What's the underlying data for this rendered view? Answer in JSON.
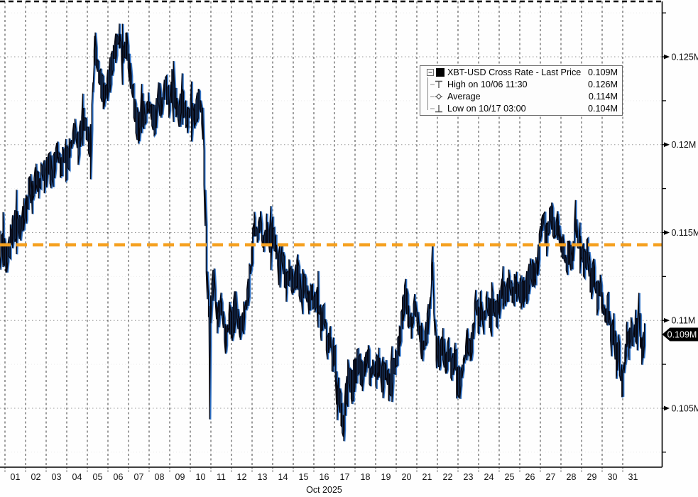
{
  "legend": {
    "title": {
      "label": "XBT-USD Cross Rate - Last Price",
      "value": "0.109M"
    },
    "rows": [
      {
        "id": "high",
        "label": "High on 10/06 11:30",
        "value": "0.126M"
      },
      {
        "id": "average",
        "label": "Average",
        "value": "0.114M"
      },
      {
        "id": "low",
        "label": "Low on 10/17 03:00",
        "value": "0.104M"
      }
    ]
  },
  "last_price_badge": {
    "text": "0.109M"
  },
  "colors": {
    "price_line_black": "#06060f",
    "price_line_blue": "#2f6fc3",
    "price_line_lightblue": "#8ab6e4",
    "average_line": "#f5a01f",
    "grid_vertical": "#3f3f3f",
    "grid_major_horizontal": "#999999",
    "grid_minor_horizontal": "#ececec",
    "axis": "#000000",
    "tick": "#444444",
    "text": "#111111",
    "badge_bg": "#000000",
    "badge_text": "#ffffff",
    "legend_icon": "#555555"
  },
  "chart_data": {
    "type": "line",
    "title": "XBT-USD Cross Rate - Last Price",
    "x_label": "Oct 2025",
    "x_unit": "days since 2025-10-01 00:00",
    "y_unit": "M USD",
    "y_range": [
      0.1016,
      0.1282
    ],
    "grid": true,
    "legend_position": "top-right",
    "high": {
      "time": "10/06 11:30",
      "value": 0.126
    },
    "low": {
      "time": "10/17 03:00",
      "value": 0.104
    },
    "average": 0.114,
    "average_line_value": 0.1143,
    "last_price": 0.109,
    "x_axis": {
      "month_label": "Oct 2025",
      "tick_labels": [
        "01",
        "02",
        "03",
        "04",
        "05",
        "06",
        "07",
        "08",
        "09",
        "10",
        "11",
        "12",
        "13",
        "14",
        "15",
        "16",
        "17",
        "18",
        "19",
        "20",
        "21",
        "22",
        "23",
        "24",
        "25",
        "26",
        "27",
        "28",
        "29",
        "30",
        "31"
      ]
    },
    "y_axis": {
      "major_ticks": [
        {
          "value": 0.125,
          "label": "0.125M"
        },
        {
          "value": 0.12,
          "label": "0.12M"
        },
        {
          "value": 0.115,
          "label": "0.115M"
        },
        {
          "value": 0.11,
          "label": "0.11M"
        },
        {
          "value": 0.105,
          "label": "0.105M"
        }
      ],
      "minor_tick_values": [
        0.1275,
        0.1225,
        0.1175,
        0.1125,
        0.1075,
        0.1025
      ]
    },
    "series": [
      {
        "name": "XBT-USD Cross Rate - Last Price",
        "points": [
          [
            -0.24,
            0.114
          ],
          [
            -0.1,
            0.1146
          ],
          [
            0.05,
            0.1133
          ],
          [
            0.2,
            0.1142
          ],
          [
            0.35,
            0.115
          ],
          [
            0.55,
            0.1156
          ],
          [
            0.75,
            0.1152
          ],
          [
            0.9,
            0.116
          ],
          [
            1.05,
            0.1164
          ],
          [
            1.2,
            0.1178
          ],
          [
            1.32,
            0.117
          ],
          [
            1.5,
            0.1182
          ],
          [
            1.65,
            0.1176
          ],
          [
            1.8,
            0.1186
          ],
          [
            1.95,
            0.118
          ],
          [
            2.1,
            0.119
          ],
          [
            2.3,
            0.1182
          ],
          [
            2.55,
            0.1198
          ],
          [
            2.7,
            0.1186
          ],
          [
            2.85,
            0.1194
          ],
          [
            3.0,
            0.119
          ],
          [
            3.15,
            0.1196
          ],
          [
            3.4,
            0.121
          ],
          [
            3.55,
            0.1198
          ],
          [
            3.8,
            0.1216
          ],
          [
            4.0,
            0.1206
          ],
          [
            4.15,
            0.1196
          ],
          [
            4.35,
            0.1257
          ],
          [
            4.5,
            0.1244
          ],
          [
            4.65,
            0.1235
          ],
          [
            4.8,
            0.1228
          ],
          [
            4.95,
            0.1232
          ],
          [
            5.1,
            0.124
          ],
          [
            5.3,
            0.1252
          ],
          [
            5.55,
            0.1262
          ],
          [
            5.72,
            0.125
          ],
          [
            5.9,
            0.1258
          ],
          [
            6.05,
            0.1242
          ],
          [
            6.2,
            0.123
          ],
          [
            6.35,
            0.1215
          ],
          [
            6.5,
            0.1208
          ],
          [
            6.65,
            0.1222
          ],
          [
            6.8,
            0.1214
          ],
          [
            6.95,
            0.1224
          ],
          [
            7.1,
            0.1218
          ],
          [
            7.3,
            0.1212
          ],
          [
            7.45,
            0.123
          ],
          [
            7.6,
            0.122
          ],
          [
            7.78,
            0.1235
          ],
          [
            8.0,
            0.1222
          ],
          [
            8.1,
            0.1234
          ],
          [
            8.3,
            0.1224
          ],
          [
            8.45,
            0.1216
          ],
          [
            8.6,
            0.1226
          ],
          [
            8.85,
            0.1214
          ],
          [
            9.0,
            0.122
          ],
          [
            9.2,
            0.1216
          ],
          [
            9.45,
            0.1226
          ],
          [
            9.6,
            0.1212
          ],
          [
            9.72,
            0.1162
          ],
          [
            9.82,
            0.112
          ],
          [
            9.9,
            0.1105
          ],
          [
            9.935,
            0.1047
          ],
          [
            9.97,
            0.1095
          ],
          [
            10.0,
            0.1112
          ],
          [
            10.15,
            0.1124
          ],
          [
            10.3,
            0.11
          ],
          [
            10.5,
            0.111
          ],
          [
            10.72,
            0.1088
          ],
          [
            10.9,
            0.1102
          ],
          [
            11.0,
            0.1096
          ],
          [
            11.2,
            0.1108
          ],
          [
            11.4,
            0.1095
          ],
          [
            11.6,
            0.1102
          ],
          [
            11.8,
            0.1116
          ],
          [
            12.0,
            0.1138
          ],
          [
            12.1,
            0.1155
          ],
          [
            12.25,
            0.1148
          ],
          [
            12.4,
            0.1157
          ],
          [
            12.55,
            0.1142
          ],
          [
            12.7,
            0.1152
          ],
          [
            12.85,
            0.1145
          ],
          [
            13.0,
            0.115
          ],
          [
            13.15,
            0.1142
          ],
          [
            13.3,
            0.1128
          ],
          [
            13.45,
            0.1138
          ],
          [
            13.65,
            0.112
          ],
          [
            13.8,
            0.1128
          ],
          [
            14.0,
            0.112
          ],
          [
            14.2,
            0.1128
          ],
          [
            14.4,
            0.1114
          ],
          [
            14.55,
            0.1122
          ],
          [
            14.75,
            0.111
          ],
          [
            14.9,
            0.1116
          ],
          [
            15.0,
            0.111
          ],
          [
            15.2,
            0.1112
          ],
          [
            15.35,
            0.1098
          ],
          [
            15.5,
            0.1104
          ],
          [
            15.65,
            0.1084
          ],
          [
            15.8,
            0.1092
          ],
          [
            15.88,
            0.1074
          ],
          [
            15.95,
            0.1082
          ],
          [
            16.05,
            0.1076
          ],
          [
            16.125,
            0.1052
          ],
          [
            16.2,
            0.106
          ],
          [
            16.35,
            0.1046
          ],
          [
            16.45,
            0.1038
          ],
          [
            16.55,
            0.1058
          ],
          [
            16.7,
            0.1068
          ],
          [
            16.85,
            0.1062
          ],
          [
            17.0,
            0.107
          ],
          [
            17.15,
            0.1077
          ],
          [
            17.35,
            0.1068
          ],
          [
            17.5,
            0.1075
          ],
          [
            17.62,
            0.1081
          ],
          [
            17.75,
            0.1067
          ],
          [
            17.85,
            0.1074
          ],
          [
            18.0,
            0.107
          ],
          [
            18.15,
            0.1076
          ],
          [
            18.3,
            0.1066
          ],
          [
            18.5,
            0.1072
          ],
          [
            18.65,
            0.1062
          ],
          [
            18.8,
            0.107
          ],
          [
            19.0,
            0.1078
          ],
          [
            19.15,
            0.1088
          ],
          [
            19.3,
            0.1104
          ],
          [
            19.45,
            0.1116
          ],
          [
            19.6,
            0.1102
          ],
          [
            19.75,
            0.1096
          ],
          [
            19.9,
            0.111
          ],
          [
            20.0,
            0.1102
          ],
          [
            20.15,
            0.1092
          ],
          [
            20.3,
            0.1084
          ],
          [
            20.5,
            0.1096
          ],
          [
            20.65,
            0.111
          ],
          [
            20.75,
            0.1136
          ],
          [
            20.82,
            0.1108
          ],
          [
            20.95,
            0.1082
          ],
          [
            21.0,
            0.1086
          ],
          [
            21.1,
            0.1078
          ],
          [
            21.25,
            0.1088
          ],
          [
            21.4,
            0.1074
          ],
          [
            21.55,
            0.1084
          ],
          [
            21.7,
            0.1072
          ],
          [
            21.85,
            0.108
          ],
          [
            21.95,
            0.1066
          ],
          [
            22.1,
            0.1064
          ],
          [
            22.3,
            0.1078
          ],
          [
            22.45,
            0.1088
          ],
          [
            22.6,
            0.1082
          ],
          [
            22.75,
            0.1094
          ],
          [
            22.85,
            0.1112
          ],
          [
            23.0,
            0.11
          ],
          [
            23.1,
            0.1108
          ],
          [
            23.25,
            0.1098
          ],
          [
            23.4,
            0.1112
          ],
          [
            23.55,
            0.1102
          ],
          [
            23.7,
            0.111
          ],
          [
            23.85,
            0.1104
          ],
          [
            24.0,
            0.1108
          ],
          [
            24.15,
            0.112
          ],
          [
            24.3,
            0.1113
          ],
          [
            24.5,
            0.1122
          ],
          [
            24.65,
            0.1114
          ],
          [
            24.8,
            0.112
          ],
          [
            25.0,
            0.1116
          ],
          [
            25.2,
            0.1116
          ],
          [
            25.4,
            0.112
          ],
          [
            25.5,
            0.1128
          ],
          [
            25.7,
            0.1126
          ],
          [
            25.85,
            0.113
          ],
          [
            26.0,
            0.115
          ],
          [
            26.15,
            0.1158
          ],
          [
            26.3,
            0.1146
          ],
          [
            26.5,
            0.1162
          ],
          [
            26.7,
            0.115
          ],
          [
            26.85,
            0.1155
          ],
          [
            27.0,
            0.1142
          ],
          [
            27.1,
            0.1142
          ],
          [
            27.25,
            0.1132
          ],
          [
            27.4,
            0.114
          ],
          [
            27.55,
            0.1132
          ],
          [
            27.7,
            0.116
          ],
          [
            27.8,
            0.1146
          ],
          [
            27.95,
            0.114
          ],
          [
            28.15,
            0.1132
          ],
          [
            28.3,
            0.114
          ],
          [
            28.45,
            0.112
          ],
          [
            28.6,
            0.1128
          ],
          [
            28.75,
            0.1112
          ],
          [
            28.9,
            0.112
          ],
          [
            29.0,
            0.111
          ],
          [
            29.15,
            0.1102
          ],
          [
            29.3,
            0.1108
          ],
          [
            29.45,
            0.1088
          ],
          [
            29.55,
            0.1096
          ],
          [
            29.7,
            0.1076
          ],
          [
            29.8,
            0.1086
          ],
          [
            29.9,
            0.1068
          ],
          [
            30.0,
            0.1064
          ],
          [
            30.1,
            0.1078
          ],
          [
            30.2,
            0.1092
          ],
          [
            30.3,
            0.1086
          ],
          [
            30.4,
            0.1096
          ],
          [
            30.5,
            0.1088
          ],
          [
            30.6,
            0.1098
          ],
          [
            30.7,
            0.1092
          ],
          [
            30.78,
            0.111
          ],
          [
            30.85,
            0.1094
          ],
          [
            30.92,
            0.1082
          ],
          [
            31.0,
            0.1086
          ],
          [
            31.05,
            0.1092
          ]
        ]
      }
    ]
  }
}
